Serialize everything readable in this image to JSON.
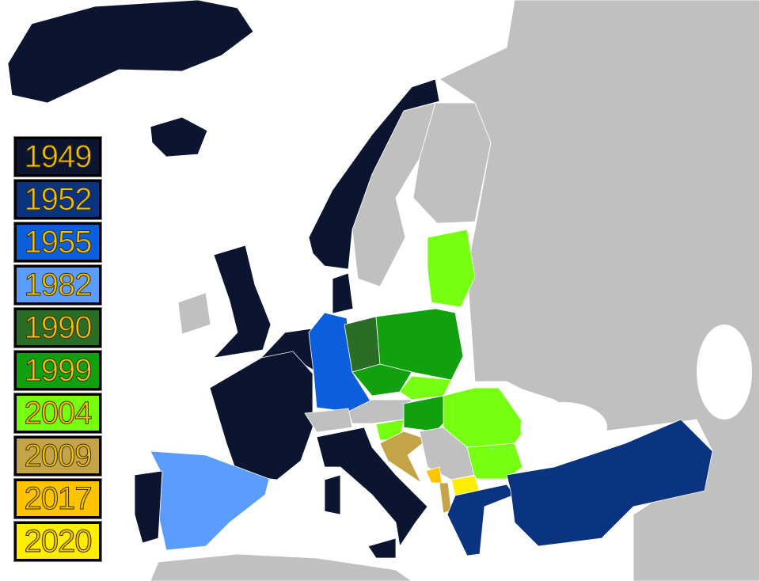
{
  "map": {
    "sea_color": "#ffffff",
    "other_land_color": "#c0c0c0",
    "border_color": "#ffffff"
  },
  "legend": [
    {
      "year": "1949",
      "color": "#0b1530"
    },
    {
      "year": "1952",
      "color": "#0a3380"
    },
    {
      "year": "1955",
      "color": "#0b5fdd"
    },
    {
      "year": "1982",
      "color": "#5b9cff"
    },
    {
      "year": "1990",
      "color": "#2a6e26"
    },
    {
      "year": "1999",
      "color": "#10a010"
    },
    {
      "year": "2004",
      "color": "#77ff11"
    },
    {
      "year": "2009",
      "color": "#c5a448"
    },
    {
      "year": "2017",
      "color": "#ffc300"
    },
    {
      "year": "2020",
      "color": "#ffee00"
    }
  ]
}
